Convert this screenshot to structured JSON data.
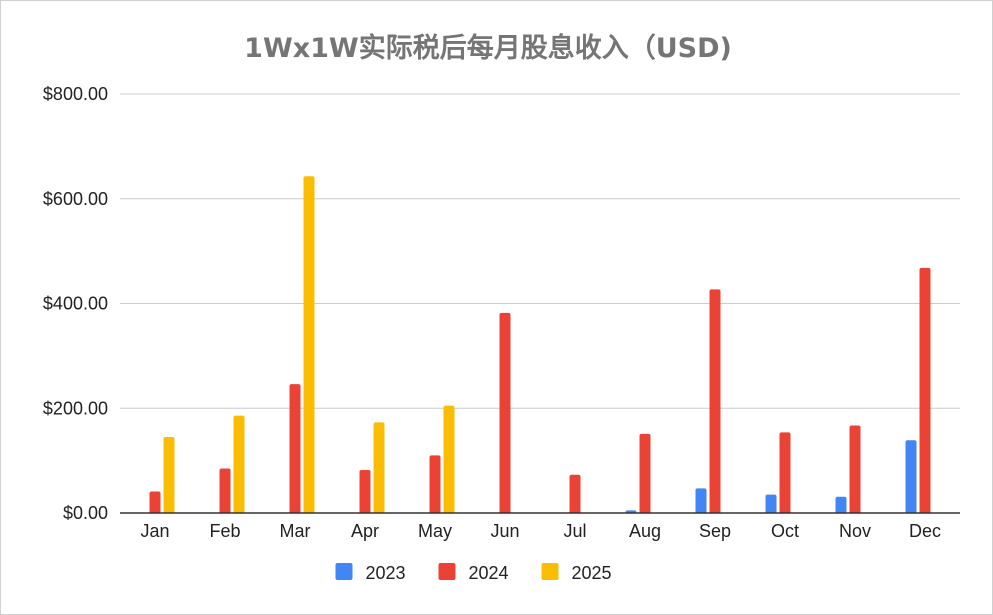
{
  "chart_data": {
    "type": "bar",
    "title": "1Wx1W实际税后每月股息收入（USD)",
    "xlabel": "",
    "ylabel": "",
    "ylim": [
      0,
      800
    ],
    "yticks": [
      "$0.00",
      "$200.00",
      "$400.00",
      "$600.00",
      "$800.00"
    ],
    "grid": true,
    "legend_position": "bottom",
    "categories": [
      "Jan",
      "Feb",
      "Mar",
      "Apr",
      "May",
      "Jun",
      "Jul",
      "Aug",
      "Sep",
      "Oct",
      "Nov",
      "Dec"
    ],
    "series": [
      {
        "name": "2023",
        "color": "#4285f4",
        "values": [
          0,
          0,
          0,
          0,
          0,
          0,
          0,
          5,
          47,
          35,
          31,
          139
        ]
      },
      {
        "name": "2024",
        "color": "#ea4335",
        "values": [
          41,
          85,
          246,
          82,
          110,
          382,
          73,
          151,
          427,
          154,
          167,
          468
        ]
      },
      {
        "name": "2025",
        "color": "#fbbc04",
        "values": [
          145,
          186,
          643,
          173,
          205,
          0,
          0,
          0,
          0,
          0,
          0,
          0
        ]
      }
    ]
  }
}
